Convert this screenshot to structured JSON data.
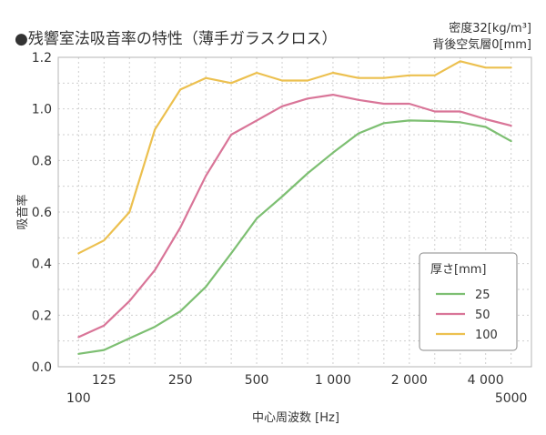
{
  "chart_data": {
    "type": "line",
    "title": "●残響室法吸音率の特性（薄手ガラスクロス）",
    "specs": [
      "密度32[kg/m³]",
      "背後空気層0[mm]"
    ],
    "ylabel": "吸音率",
    "xlabel": "中心周波数 [Hz]",
    "ylim": [
      0,
      1.2
    ],
    "yticks": [
      "0.0",
      "0.2",
      "0.4",
      "0.6",
      "0.8",
      "1.0",
      "1.2"
    ],
    "x_scale": "log",
    "x": [
      100,
      125,
      160,
      200,
      250,
      315,
      400,
      500,
      630,
      800,
      1000,
      1250,
      1600,
      2000,
      2500,
      3150,
      4000,
      5000
    ],
    "xticks_upper": [
      "125",
      "250",
      "500",
      "1 000",
      "2 000",
      "4 000"
    ],
    "xticks_lower": [
      "100",
      "5000"
    ],
    "grid": true,
    "legend_title": "厚さ[mm]",
    "legend_position": "bottom-right",
    "series": [
      {
        "name": "25",
        "color": "#7dbf72",
        "values": [
          0.05,
          0.065,
          0.11,
          0.155,
          0.215,
          0.31,
          0.44,
          0.575,
          0.66,
          0.75,
          0.83,
          0.905,
          0.945,
          0.955,
          0.953,
          0.948,
          0.93,
          0.875
        ]
      },
      {
        "name": "50",
        "color": "#d97598",
        "values": [
          0.115,
          0.16,
          0.255,
          0.375,
          0.54,
          0.74,
          0.9,
          0.955,
          1.01,
          1.04,
          1.055,
          1.035,
          1.02,
          1.02,
          0.99,
          0.99,
          0.96,
          0.935
        ]
      },
      {
        "name": "100",
        "color": "#ecc04f",
        "values": [
          0.44,
          0.49,
          0.6,
          0.92,
          1.075,
          1.12,
          1.1,
          1.14,
          1.11,
          1.11,
          1.14,
          1.12,
          1.12,
          1.13,
          1.13,
          1.185,
          1.16,
          1.16
        ]
      }
    ]
  }
}
